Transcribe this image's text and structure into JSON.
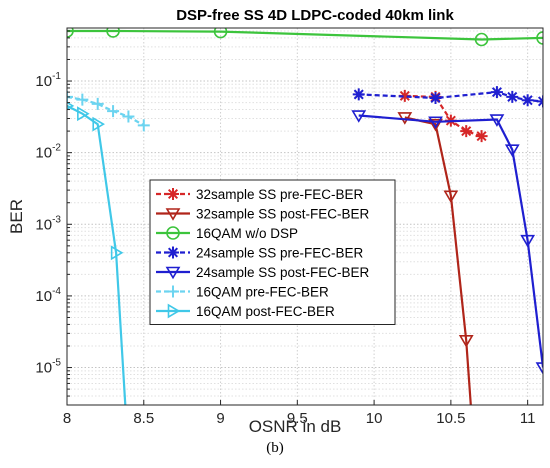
{
  "caption": "(b)",
  "chart_data": {
    "type": "line",
    "title": "DSP-free SS 4D LDPC-coded 40km link",
    "xlabel": "OSNR in dB",
    "ylabel": "BER",
    "xlim": [
      8,
      11.1
    ],
    "ylim": [
      3e-06,
      0.55
    ],
    "yscale": "log",
    "grid": true,
    "legend_position": "center-left",
    "x_ticks": [
      {
        "v": 8,
        "label": "8"
      },
      {
        "v": 8.5,
        "label": "8.5"
      },
      {
        "v": 9,
        "label": "9"
      },
      {
        "v": 9.5,
        "label": "9.5"
      },
      {
        "v": 10,
        "label": "10"
      },
      {
        "v": 10.5,
        "label": "10.5"
      },
      {
        "v": 11,
        "label": "11"
      }
    ],
    "y_ticks": [
      {
        "v": 1e-05,
        "base": "10",
        "exp": "-5"
      },
      {
        "v": 0.0001,
        "base": "10",
        "exp": "-4"
      },
      {
        "v": 0.001,
        "base": "10",
        "exp": "-3"
      },
      {
        "v": 0.01,
        "base": "10",
        "exp": "-2"
      },
      {
        "v": 0.1,
        "base": "10",
        "exp": "-1"
      }
    ],
    "series": [
      {
        "name": "32sample SS pre-FEC-BER",
        "color": "#d62728",
        "dash": "5,3",
        "marker": "star",
        "points": [
          [
            10.2,
            0.062
          ],
          [
            10.4,
            0.06
          ],
          [
            10.5,
            0.028
          ],
          [
            10.6,
            0.02
          ],
          [
            10.7,
            0.017
          ]
        ]
      },
      {
        "name": "32sample SS post-FEC-BER",
        "color": "#b0251a",
        "dash": "",
        "marker": "triangle-down",
        "points": [
          [
            10.2,
            0.031
          ],
          [
            10.4,
            0.025
          ],
          [
            10.5,
            0.0025
          ],
          [
            10.6,
            2.4e-05
          ],
          [
            10.63,
            3e-06
          ]
        ]
      },
      {
        "name": "16QAM w/o DSP",
        "color": "#3cc43c",
        "dash": "",
        "marker": "circle",
        "points": [
          [
            8,
            0.5
          ],
          [
            8.3,
            0.5
          ],
          [
            9,
            0.49
          ],
          [
            10.7,
            0.38
          ],
          [
            11.1,
            0.4
          ]
        ]
      },
      {
        "name": "24sample SS pre-FEC-BER",
        "color": "#1f1fd0",
        "dash": "5,3",
        "marker": "star",
        "points": [
          [
            9.9,
            0.065
          ],
          [
            10.4,
            0.058
          ],
          [
            10.8,
            0.07
          ],
          [
            10.9,
            0.06
          ],
          [
            11,
            0.054
          ],
          [
            11.1,
            0.052
          ]
        ]
      },
      {
        "name": "24sample SS post-FEC-BER",
        "color": "#1f1fd0",
        "dash": "",
        "marker": "triangle-down",
        "points": [
          [
            9.9,
            0.033
          ],
          [
            10.4,
            0.027
          ],
          [
            10.8,
            0.029
          ],
          [
            10.9,
            0.011
          ],
          [
            11,
            0.0006
          ],
          [
            11.1,
            1e-05
          ]
        ]
      },
      {
        "name": "16QAM pre-FEC-BER",
        "color": "#6cd4f0",
        "dash": "5,3",
        "marker": "plus",
        "points": [
          [
            8,
            0.06
          ],
          [
            8.1,
            0.055
          ],
          [
            8.2,
            0.048
          ],
          [
            8.3,
            0.038
          ],
          [
            8.4,
            0.032
          ],
          [
            8.5,
            0.024
          ]
        ]
      },
      {
        "name": "16QAM post-FEC-BER",
        "color": "#40c8e8",
        "dash": "",
        "marker": "triangle-right",
        "points": [
          [
            8,
            0.045
          ],
          [
            8.1,
            0.035
          ],
          [
            8.2,
            0.025
          ],
          [
            8.32,
            0.0004
          ],
          [
            8.38,
            3e-06
          ]
        ]
      }
    ]
  }
}
